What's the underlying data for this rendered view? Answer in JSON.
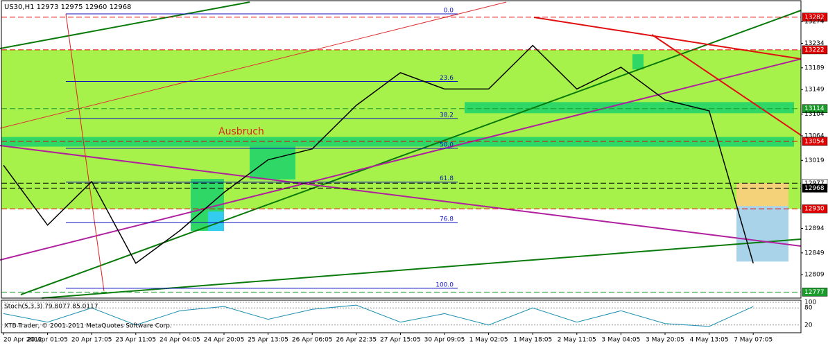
{
  "chart_data": {
    "type": "line",
    "title": "US30,H1  12973 12975 12960 12968",
    "annotation": "Ausbruch",
    "copyright": "XTB-Trader, © 2001-2011 MetaQuotes Software Corp.",
    "categories": [
      "20 Apr 2012",
      "20 Apr 01:05",
      "20 Apr 17:05",
      "23 Apr 11:05",
      "24 Apr 04:05",
      "24 Apr 20:05",
      "25 Apr 13:05",
      "26 Apr 06:05",
      "26 Apr 22:35",
      "27 Apr 15:05",
      "30 Apr 09:05",
      "1 May 02:05",
      "1 May 18:05",
      "2 May 11:05",
      "3 May 04:05",
      "3 May 20:05",
      "4 May 13:05",
      "7 May 07:05"
    ],
    "series": [
      {
        "name": "US30",
        "color": "#000000",
        "values": [
          13010,
          12900,
          12980,
          12830,
          12890,
          12960,
          13020,
          13040,
          13120,
          13180,
          13150,
          13150,
          13230,
          13150,
          13190,
          13130,
          13110,
          12830
        ]
      }
    ],
    "ylim": [
      12766,
      13311
    ],
    "yticks": [
      13274,
      13234,
      13189,
      13149,
      13104,
      13064,
      13019,
      12894,
      12849,
      12809
    ],
    "levels": [
      {
        "value": 13282,
        "color": "#e00000"
      },
      {
        "value": 13222,
        "color": "#e00000"
      },
      {
        "value": 13114,
        "color": "#1a9c2a"
      },
      {
        "value": 13054,
        "color": "#e00000"
      },
      {
        "value": 12977,
        "color": "#ffffff"
      },
      {
        "value": 12968,
        "color": "#000000"
      },
      {
        "value": 12930,
        "color": "#e00000"
      },
      {
        "value": 12777,
        "color": "#1a9c2a"
      }
    ],
    "fibonacci": [
      {
        "label": "0.0",
        "price": 13288
      },
      {
        "label": "23.6",
        "price": 13164
      },
      {
        "label": "38.2",
        "price": 13096
      },
      {
        "label": "50.0",
        "price": 13041
      },
      {
        "label": "61.8",
        "price": 12979
      },
      {
        "label": "76.8",
        "price": 12905
      },
      {
        "label": "100.0",
        "price": 12784
      }
    ],
    "stochastic": {
      "title": "Stoch(5,3,3) 79.8077 85.0117",
      "color": "#1a8fb0",
      "values": [
        60,
        30,
        80,
        20,
        70,
        85,
        40,
        75,
        90,
        30,
        60,
        20,
        80,
        30,
        70,
        25,
        15,
        85
      ],
      "ylim": [
        0,
        100
      ],
      "yticks": [
        100,
        80,
        20
      ]
    }
  }
}
